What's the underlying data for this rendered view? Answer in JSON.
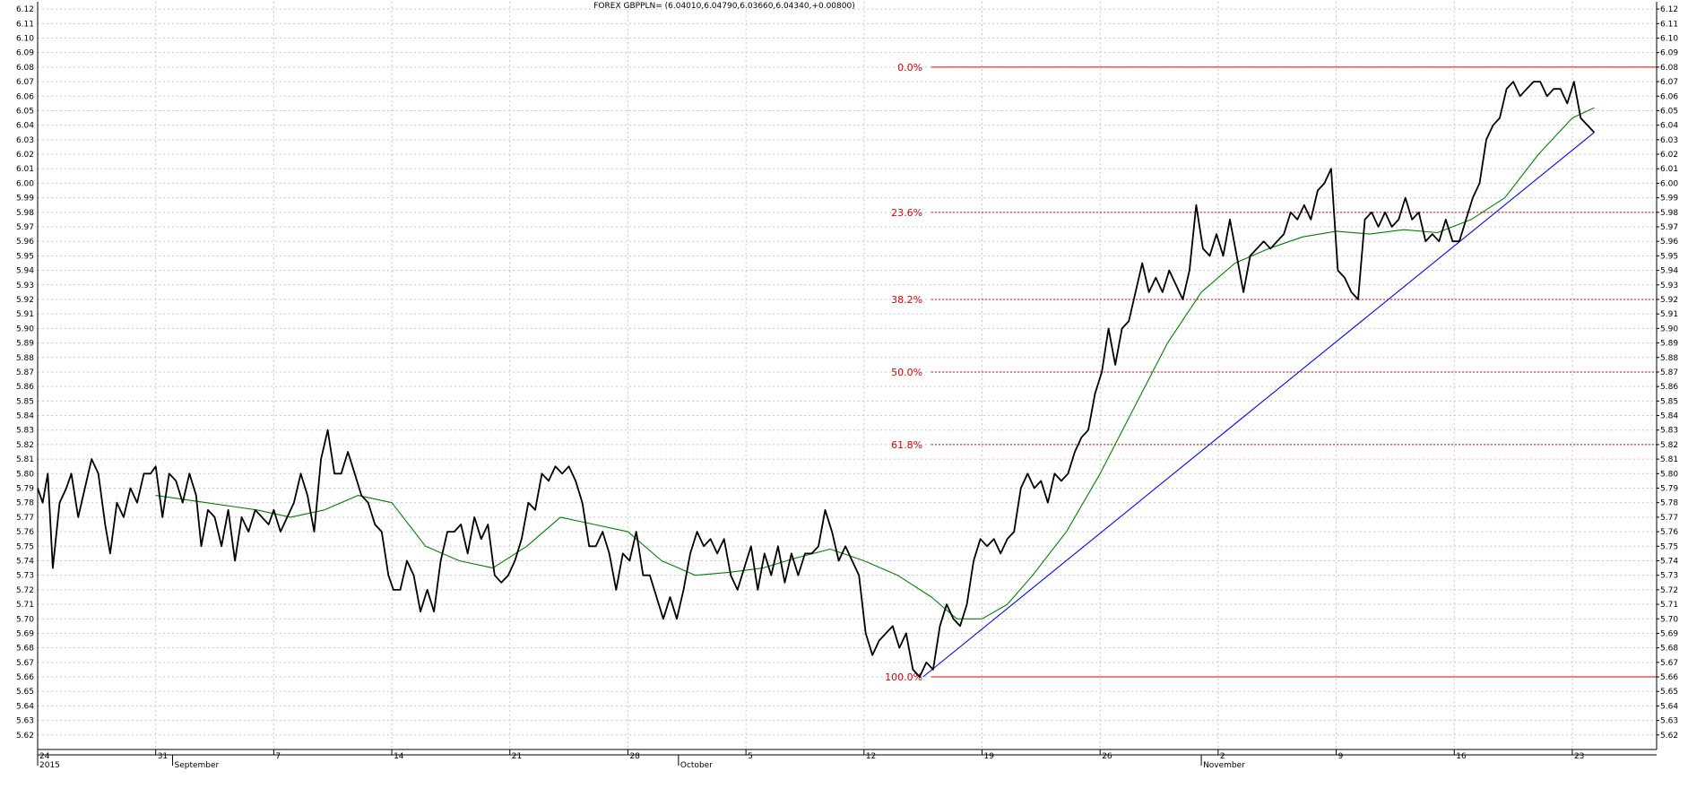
{
  "chart_data": {
    "type": "line",
    "title": "FOREX GBPPLN= (6.04010,6.04790,6.03660,6.04340,+0.00800)",
    "ylim": [
      5.61,
      6.125
    ],
    "y_ticks": [
      "5.62",
      "5.63",
      "5.64",
      "5.65",
      "5.66",
      "5.67",
      "5.68",
      "5.69",
      "5.70",
      "5.71",
      "5.72",
      "5.73",
      "5.74",
      "5.75",
      "5.76",
      "5.77",
      "5.78",
      "5.79",
      "5.80",
      "5.81",
      "5.82",
      "5.83",
      "5.84",
      "5.85",
      "5.86",
      "5.87",
      "5.88",
      "5.89",
      "5.90",
      "5.91",
      "5.92",
      "5.93",
      "5.94",
      "5.95",
      "5.96",
      "5.97",
      "5.98",
      "5.99",
      "6.00",
      "6.01",
      "6.02",
      "6.03",
      "6.04",
      "6.05",
      "6.06",
      "6.07",
      "6.08",
      "6.09",
      "6.10",
      "6.11",
      "6.12"
    ],
    "x_ticks": [
      {
        "label": "24",
        "t": 0
      },
      {
        "label": "31",
        "t": 7
      },
      {
        "label": "7",
        "t": 14
      },
      {
        "label": "14",
        "t": 21
      },
      {
        "label": "21",
        "t": 28
      },
      {
        "label": "28",
        "t": 35
      },
      {
        "label": "5",
        "t": 42
      },
      {
        "label": "12",
        "t": 49
      },
      {
        "label": "19",
        "t": 56
      },
      {
        "label": "26",
        "t": 63
      },
      {
        "label": "2",
        "t": 70
      },
      {
        "label": "9",
        "t": 77
      },
      {
        "label": "16",
        "t": 84
      },
      {
        "label": "23",
        "t": 91
      }
    ],
    "x_periods": [
      {
        "label": "2015",
        "t": 0
      },
      {
        "label": "September",
        "t": 8
      },
      {
        "label": "October",
        "t": 38
      },
      {
        "label": "November",
        "t": 69
      }
    ],
    "x_range": [
      0,
      96
    ],
    "series": [
      {
        "role": "price",
        "color": "#000000",
        "points": [
          [
            0,
            5.79
          ],
          [
            0.3,
            5.78
          ],
          [
            0.6,
            5.8
          ],
          [
            0.9,
            5.735
          ],
          [
            1.3,
            5.78
          ],
          [
            1.7,
            5.79
          ],
          [
            2,
            5.8
          ],
          [
            2.4,
            5.77
          ],
          [
            2.8,
            5.79
          ],
          [
            3.2,
            5.81
          ],
          [
            3.6,
            5.8
          ],
          [
            4,
            5.765
          ],
          [
            4.3,
            5.745
          ],
          [
            4.7,
            5.78
          ],
          [
            5.1,
            5.77
          ],
          [
            5.5,
            5.79
          ],
          [
            5.9,
            5.78
          ],
          [
            6.3,
            5.8
          ],
          [
            6.7,
            5.8
          ],
          [
            7,
            5.805
          ],
          [
            7.4,
            5.77
          ],
          [
            7.8,
            5.8
          ],
          [
            8.2,
            5.795
          ],
          [
            8.6,
            5.78
          ],
          [
            9,
            5.8
          ],
          [
            9.4,
            5.785
          ],
          [
            9.7,
            5.75
          ],
          [
            10.1,
            5.775
          ],
          [
            10.5,
            5.77
          ],
          [
            10.9,
            5.75
          ],
          [
            11.3,
            5.775
          ],
          [
            11.7,
            5.74
          ],
          [
            12.1,
            5.77
          ],
          [
            12.5,
            5.76
          ],
          [
            12.9,
            5.775
          ],
          [
            13.3,
            5.77
          ],
          [
            13.7,
            5.765
          ],
          [
            14,
            5.775
          ],
          [
            14.4,
            5.76
          ],
          [
            14.8,
            5.77
          ],
          [
            15.2,
            5.78
          ],
          [
            15.6,
            5.8
          ],
          [
            16,
            5.785
          ],
          [
            16.4,
            5.76
          ],
          [
            16.8,
            5.81
          ],
          [
            17.2,
            5.83
          ],
          [
            17.6,
            5.8
          ],
          [
            18,
            5.8
          ],
          [
            18.4,
            5.815
          ],
          [
            18.8,
            5.8
          ],
          [
            19.2,
            5.785
          ],
          [
            19.6,
            5.78
          ],
          [
            20,
            5.765
          ],
          [
            20.4,
            5.76
          ],
          [
            20.8,
            5.73
          ],
          [
            21.1,
            5.72
          ],
          [
            21.5,
            5.72
          ],
          [
            21.9,
            5.74
          ],
          [
            22.3,
            5.73
          ],
          [
            22.7,
            5.705
          ],
          [
            23.1,
            5.72
          ],
          [
            23.5,
            5.705
          ],
          [
            23.9,
            5.74
          ],
          [
            24.3,
            5.76
          ],
          [
            24.7,
            5.76
          ],
          [
            25.1,
            5.765
          ],
          [
            25.5,
            5.745
          ],
          [
            25.9,
            5.77
          ],
          [
            26.3,
            5.755
          ],
          [
            26.7,
            5.765
          ],
          [
            27.1,
            5.73
          ],
          [
            27.5,
            5.725
          ],
          [
            27.9,
            5.73
          ],
          [
            28.3,
            5.74
          ],
          [
            28.7,
            5.755
          ],
          [
            29.1,
            5.78
          ],
          [
            29.5,
            5.775
          ],
          [
            29.9,
            5.8
          ],
          [
            30.3,
            5.795
          ],
          [
            30.7,
            5.805
          ],
          [
            31.1,
            5.8
          ],
          [
            31.5,
            5.805
          ],
          [
            31.9,
            5.795
          ],
          [
            32.3,
            5.78
          ],
          [
            32.7,
            5.75
          ],
          [
            33.1,
            5.75
          ],
          [
            33.5,
            5.76
          ],
          [
            33.9,
            5.745
          ],
          [
            34.3,
            5.72
          ],
          [
            34.7,
            5.745
          ],
          [
            35.1,
            5.74
          ],
          [
            35.5,
            5.76
          ],
          [
            35.9,
            5.73
          ],
          [
            36.3,
            5.73
          ],
          [
            36.7,
            5.715
          ],
          [
            37.1,
            5.7
          ],
          [
            37.5,
            5.715
          ],
          [
            37.9,
            5.7
          ],
          [
            38.3,
            5.72
          ],
          [
            38.7,
            5.745
          ],
          [
            39.1,
            5.76
          ],
          [
            39.5,
            5.75
          ],
          [
            39.9,
            5.755
          ],
          [
            40.3,
            5.745
          ],
          [
            40.7,
            5.755
          ],
          [
            41.1,
            5.73
          ],
          [
            41.5,
            5.72
          ],
          [
            41.9,
            5.735
          ],
          [
            42.3,
            5.75
          ],
          [
            42.7,
            5.72
          ],
          [
            43.1,
            5.745
          ],
          [
            43.5,
            5.73
          ],
          [
            43.9,
            5.75
          ],
          [
            44.3,
            5.725
          ],
          [
            44.7,
            5.745
          ],
          [
            45.1,
            5.73
          ],
          [
            45.5,
            5.745
          ],
          [
            45.9,
            5.745
          ],
          [
            46.3,
            5.75
          ],
          [
            46.7,
            5.775
          ],
          [
            47.1,
            5.76
          ],
          [
            47.5,
            5.74
          ],
          [
            47.9,
            5.75
          ],
          [
            48.3,
            5.74
          ],
          [
            48.7,
            5.73
          ],
          [
            49.1,
            5.69
          ],
          [
            49.5,
            5.675
          ],
          [
            49.9,
            5.685
          ],
          [
            50.3,
            5.69
          ],
          [
            50.7,
            5.695
          ],
          [
            51.1,
            5.68
          ],
          [
            51.5,
            5.69
          ],
          [
            51.9,
            5.665
          ],
          [
            52.3,
            5.66
          ],
          [
            52.7,
            5.67
          ],
          [
            53.1,
            5.665
          ],
          [
            53.5,
            5.695
          ],
          [
            53.9,
            5.71
          ],
          [
            54.3,
            5.7
          ],
          [
            54.7,
            5.695
          ],
          [
            55.1,
            5.71
          ],
          [
            55.5,
            5.74
          ],
          [
            55.9,
            5.755
          ],
          [
            56.3,
            5.75
          ],
          [
            56.7,
            5.755
          ],
          [
            57.1,
            5.745
          ],
          [
            57.5,
            5.755
          ],
          [
            57.9,
            5.76
          ],
          [
            58.3,
            5.79
          ],
          [
            58.7,
            5.8
          ],
          [
            59.1,
            5.79
          ],
          [
            59.5,
            5.795
          ],
          [
            59.9,
            5.78
          ],
          [
            60.3,
            5.8
          ],
          [
            60.7,
            5.795
          ],
          [
            61.1,
            5.8
          ],
          [
            61.5,
            5.815
          ],
          [
            61.9,
            5.825
          ],
          [
            62.3,
            5.83
          ],
          [
            62.7,
            5.855
          ],
          [
            63.1,
            5.87
          ],
          [
            63.5,
            5.9
          ],
          [
            63.9,
            5.875
          ],
          [
            64.3,
            5.9
          ],
          [
            64.7,
            5.905
          ],
          [
            65.1,
            5.925
          ],
          [
            65.5,
            5.945
          ],
          [
            65.9,
            5.925
          ],
          [
            66.3,
            5.935
          ],
          [
            66.7,
            5.925
          ],
          [
            67.1,
            5.94
          ],
          [
            67.5,
            5.93
          ],
          [
            67.9,
            5.92
          ],
          [
            68.3,
            5.94
          ],
          [
            68.7,
            5.985
          ],
          [
            69.1,
            5.955
          ],
          [
            69.5,
            5.95
          ],
          [
            69.9,
            5.965
          ],
          [
            70.3,
            5.95
          ],
          [
            70.7,
            5.975
          ],
          [
            71.1,
            5.95
          ],
          [
            71.5,
            5.925
          ],
          [
            71.9,
            5.95
          ],
          [
            72.3,
            5.955
          ],
          [
            72.7,
            5.96
          ],
          [
            73.1,
            5.955
          ],
          [
            73.5,
            5.96
          ],
          [
            73.9,
            5.965
          ],
          [
            74.3,
            5.98
          ],
          [
            74.7,
            5.975
          ],
          [
            75.1,
            5.985
          ],
          [
            75.5,
            5.975
          ],
          [
            75.9,
            5.995
          ],
          [
            76.3,
            6.0
          ],
          [
            76.7,
            6.01
          ],
          [
            77.1,
            5.94
          ],
          [
            77.5,
            5.935
          ],
          [
            77.9,
            5.925
          ],
          [
            78.3,
            5.92
          ],
          [
            78.7,
            5.975
          ],
          [
            79.1,
            5.98
          ],
          [
            79.5,
            5.97
          ],
          [
            79.9,
            5.98
          ],
          [
            80.3,
            5.97
          ],
          [
            80.7,
            5.975
          ],
          [
            81.1,
            5.99
          ],
          [
            81.5,
            5.975
          ],
          [
            81.9,
            5.98
          ],
          [
            82.3,
            5.96
          ],
          [
            82.7,
            5.965
          ],
          [
            83.1,
            5.96
          ],
          [
            83.5,
            5.975
          ],
          [
            83.9,
            5.96
          ],
          [
            84.3,
            5.96
          ],
          [
            84.7,
            5.975
          ],
          [
            85.1,
            5.99
          ],
          [
            85.5,
            6.0
          ],
          [
            85.9,
            6.03
          ],
          [
            86.3,
            6.04
          ],
          [
            86.7,
            6.045
          ],
          [
            87.1,
            6.065
          ],
          [
            87.5,
            6.07
          ],
          [
            87.9,
            6.06
          ],
          [
            88.3,
            6.065
          ],
          [
            88.7,
            6.07
          ],
          [
            89.1,
            6.07
          ],
          [
            89.5,
            6.06
          ],
          [
            89.9,
            6.065
          ],
          [
            90.3,
            6.065
          ],
          [
            90.7,
            6.055
          ],
          [
            91.1,
            6.07
          ],
          [
            91.5,
            6.045
          ],
          [
            91.9,
            6.04
          ],
          [
            92.3,
            6.035
          ]
        ]
      },
      {
        "role": "moving-average",
        "color": "#008000",
        "points": [
          [
            7,
            5.785
          ],
          [
            10,
            5.78
          ],
          [
            13,
            5.775
          ],
          [
            15,
            5.77
          ],
          [
            17,
            5.775
          ],
          [
            19,
            5.785
          ],
          [
            21,
            5.78
          ],
          [
            23,
            5.75
          ],
          [
            25,
            5.74
          ],
          [
            27,
            5.735
          ],
          [
            29,
            5.75
          ],
          [
            31,
            5.77
          ],
          [
            33,
            5.765
          ],
          [
            35,
            5.76
          ],
          [
            37,
            5.74
          ],
          [
            39,
            5.73
          ],
          [
            41,
            5.732
          ],
          [
            43,
            5.735
          ],
          [
            45,
            5.742
          ],
          [
            47,
            5.748
          ],
          [
            49,
            5.74
          ],
          [
            51,
            5.73
          ],
          [
            53,
            5.715
          ],
          [
            54.5,
            5.7
          ],
          [
            56,
            5.7
          ],
          [
            57.5,
            5.71
          ],
          [
            59,
            5.73
          ],
          [
            61,
            5.76
          ],
          [
            63,
            5.8
          ],
          [
            65,
            5.845
          ],
          [
            67,
            5.89
          ],
          [
            69,
            5.925
          ],
          [
            71,
            5.945
          ],
          [
            73,
            5.955
          ],
          [
            75,
            5.963
          ],
          [
            77,
            5.967
          ],
          [
            79,
            5.965
          ],
          [
            81,
            5.968
          ],
          [
            83,
            5.966
          ],
          [
            85,
            5.975
          ],
          [
            87,
            5.99
          ],
          [
            89,
            6.02
          ],
          [
            91,
            6.045
          ],
          [
            92.3,
            6.052
          ]
        ]
      },
      {
        "role": "trendline",
        "color": "#0000ff",
        "points": [
          [
            52.5,
            5.66
          ],
          [
            92.3,
            6.035
          ]
        ]
      }
    ],
    "fib_levels": [
      {
        "label": "0.0%",
        "value": 6.08,
        "style": "solid"
      },
      {
        "label": "23.6%",
        "value": 5.98,
        "style": "dotted"
      },
      {
        "label": "38.2%",
        "value": 5.92,
        "style": "dotted"
      },
      {
        "label": "50.0%",
        "value": 5.87,
        "style": "dotted"
      },
      {
        "label": "61.8%",
        "value": 5.82,
        "style": "dotted"
      },
      {
        "label": "100.0%",
        "value": 5.66,
        "style": "solid"
      }
    ],
    "fib_start_t": 53,
    "grid": true,
    "colors": {
      "price": "#000000",
      "ma": "#008000",
      "trend": "#0000ff",
      "fib": "#e00000",
      "grid": "#c8c8c8"
    }
  }
}
